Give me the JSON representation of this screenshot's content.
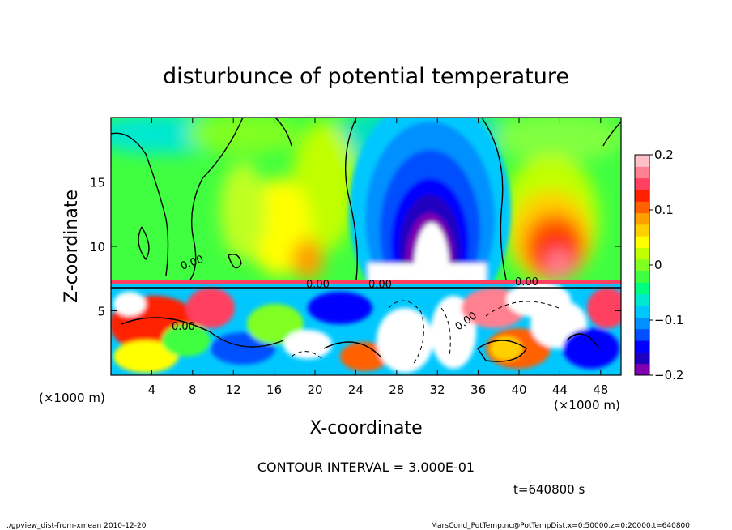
{
  "chart_data": {
    "type": "heatmap",
    "title": "disturbunce of potential temperature",
    "xlabel": "X-coordinate",
    "ylabel": "Z-coordinate",
    "x_unit_left": "(×1000 m)",
    "x_unit_right": "(×1000 m)",
    "xlim": [
      0,
      50
    ],
    "ylim": [
      0,
      20
    ],
    "x_ticks": [
      4,
      8,
      12,
      16,
      20,
      24,
      28,
      32,
      36,
      40,
      44,
      48
    ],
    "y_ticks": [
      5,
      10,
      15
    ],
    "colorbar": {
      "range": [
        -0.2,
        0.2
      ],
      "ticks": [
        {
          "value": 0.2,
          "label": "0.2"
        },
        {
          "value": 0.1,
          "label": "0.1"
        },
        {
          "value": 0,
          "label": "0"
        },
        {
          "value": -0.1,
          "label": "−0.1"
        },
        {
          "value": -0.2,
          "label": "−0.2"
        }
      ],
      "colors": [
        "#8000b0",
        "#2000c0",
        "#0000ff",
        "#0050ff",
        "#0090ff",
        "#00c8ff",
        "#00e8d0",
        "#00ff80",
        "#40ff40",
        "#80ff20",
        "#c0ff00",
        "#ffff00",
        "#ffd000",
        "#ffa000",
        "#ff6000",
        "#ff2000",
        "#ff4060",
        "#ff8090",
        "#ffc0c8"
      ]
    },
    "contour_labels": [
      "0.00",
      "0.00",
      "0.00",
      "0.00",
      "0.00",
      "0.00"
    ],
    "contour_interval_text": "CONTOUR INTERVAL = 3.000E-01",
    "time_text": "t=640800 s"
  },
  "footer": {
    "left": "./gpview_dist-from-xmean  2010-12-20",
    "right": "MarsCond_PotTemp.nc@PotTempDist,x=0:50000,z=0:20000,t=640800"
  }
}
